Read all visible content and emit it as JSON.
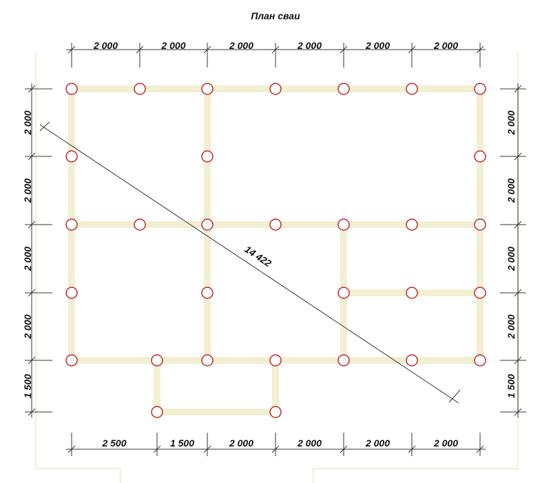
{
  "title": "План сваи",
  "top_dimensions": [
    "2 000",
    "2 000",
    "2 000",
    "2 000",
    "2 000",
    "2 000"
  ],
  "bottom_dimensions": [
    "2 500",
    "1 500",
    "2 000",
    "2 000",
    "2 000",
    "2 000"
  ],
  "left_dimensions": [
    "2 000",
    "2 000",
    "2 000",
    "2 000",
    "1 500"
  ],
  "right_dimensions": [
    "2 000",
    "2 000",
    "2 000",
    "2 000",
    "1 500"
  ],
  "diagonal": "14 422"
}
